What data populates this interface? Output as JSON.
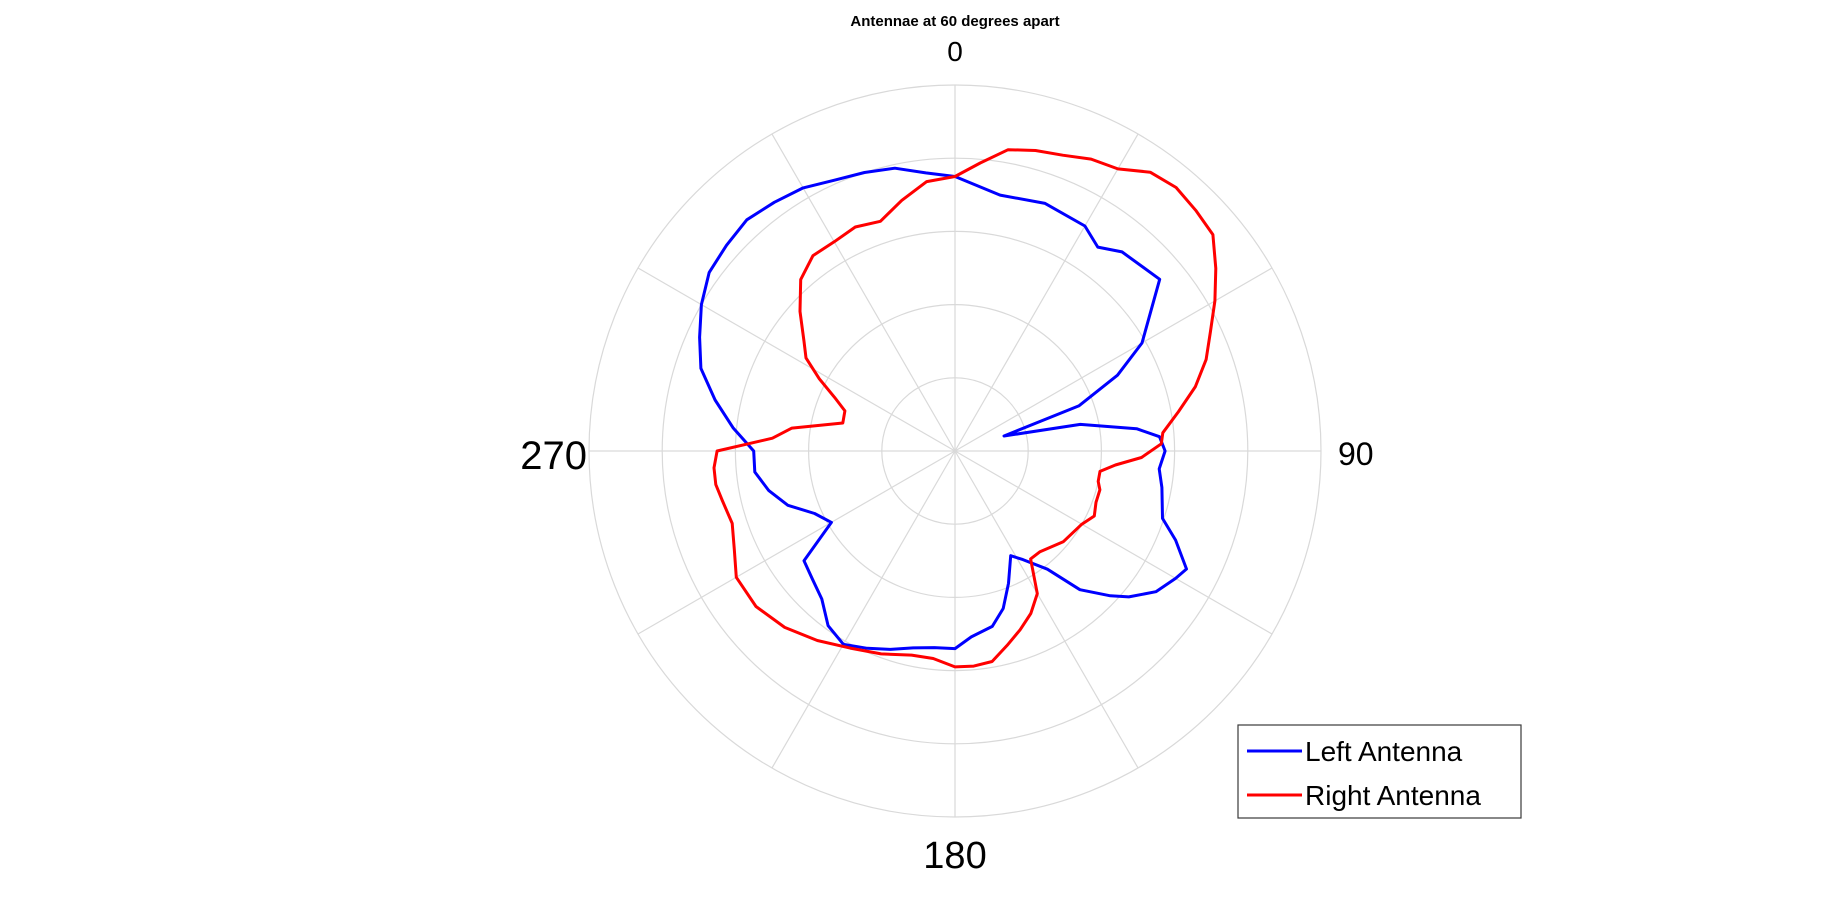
{
  "chart_data": {
    "type": "polar_line",
    "title": "Antennae at 60 degrees apart",
    "theta_zero_location": "top",
    "theta_direction": "clockwise",
    "angle_labels": [
      "0",
      "90",
      "180",
      "270"
    ],
    "spoke_angles_deg": [
      0,
      30,
      60,
      90,
      120,
      150,
      180,
      210,
      240,
      270,
      300,
      330
    ],
    "r_rings": [
      1,
      2,
      3,
      4,
      5
    ],
    "r_max": 5,
    "legend": {
      "position": "bottom-right",
      "entries": [
        "Left Antenna",
        "Right Antenna"
      ]
    },
    "series": [
      {
        "name": "Left Antenna",
        "color": "#0000ff",
        "theta_deg": [
          0,
          10,
          20,
          30,
          35,
          40,
          50,
          60,
          65,
          70,
          73,
          78,
          83,
          86,
          90,
          95,
          100,
          108,
          112,
          117,
          120,
          125,
          130,
          133,
          138,
          142,
          148,
          152,
          158,
          163,
          168,
          175,
          180,
          186,
          192,
          198,
          204,
          210,
          216,
          222,
          228,
          234,
          240,
          246,
          252,
          258,
          264,
          270,
          276,
          282,
          288,
          294,
          300,
          306,
          312,
          318,
          324,
          330,
          336,
          342,
          348,
          354,
          360
        ],
        "r": [
          3.75,
          3.55,
          3.6,
          3.55,
          3.4,
          3.55,
          3.65,
          2.95,
          2.45,
          1.8,
          0.7,
          1.75,
          2.5,
          2.8,
          2.87,
          2.8,
          2.87,
          2.98,
          3.25,
          3.55,
          3.48,
          3.35,
          3.1,
          2.9,
          2.55,
          2.05,
          1.75,
          1.62,
          1.95,
          2.25,
          2.45,
          2.55,
          2.7,
          2.7,
          2.75,
          2.85,
          2.95,
          3.05,
          2.95,
          2.72,
          2.62,
          2.55,
          1.95,
          2.1,
          2.4,
          2.6,
          2.75,
          2.75,
          3.05,
          3.35,
          3.65,
          3.82,
          4.0,
          4.15,
          4.2,
          4.25,
          4.2,
          4.15,
          4.05,
          4.0,
          3.95,
          3.82,
          3.75
        ]
      },
      {
        "name": "Right Antenna",
        "color": "#ff0000",
        "theta_deg": [
          0,
          5,
          10,
          15,
          20,
          25,
          30,
          35,
          40,
          45,
          50,
          55,
          60,
          65,
          70,
          75,
          80,
          85,
          88,
          92,
          95,
          98,
          102,
          105,
          110,
          115,
          120,
          130,
          140,
          145,
          150,
          155,
          160,
          165,
          170,
          175,
          180,
          186,
          192,
          200,
          208,
          216,
          224,
          232,
          240,
          246,
          252,
          258,
          262,
          266,
          270,
          274,
          278,
          284,
          290,
          294,
          298,
          302,
          306,
          312,
          318,
          324,
          330,
          336,
          342,
          348,
          354,
          360
        ],
        "r": [
          3.75,
          3.95,
          4.18,
          4.25,
          4.3,
          4.4,
          4.45,
          4.65,
          4.7,
          4.65,
          4.6,
          4.35,
          4.1,
          3.85,
          3.65,
          3.4,
          3.1,
          2.85,
          2.82,
          2.55,
          2.2,
          2.0,
          2.0,
          2.05,
          2.05,
          2.1,
          2.0,
          1.93,
          1.8,
          1.8,
          2.25,
          2.45,
          2.6,
          2.75,
          2.92,
          2.95,
          2.95,
          2.85,
          2.85,
          2.95,
          3.05,
          3.2,
          3.35,
          3.45,
          3.45,
          3.3,
          3.2,
          3.25,
          3.3,
          3.3,
          3.25,
          2.5,
          2.25,
          1.58,
          1.6,
          1.8,
          2.1,
          2.4,
          2.55,
          2.85,
          3.15,
          3.3,
          3.3,
          3.35,
          3.3,
          3.5,
          3.7,
          3.75
        ]
      }
    ]
  }
}
